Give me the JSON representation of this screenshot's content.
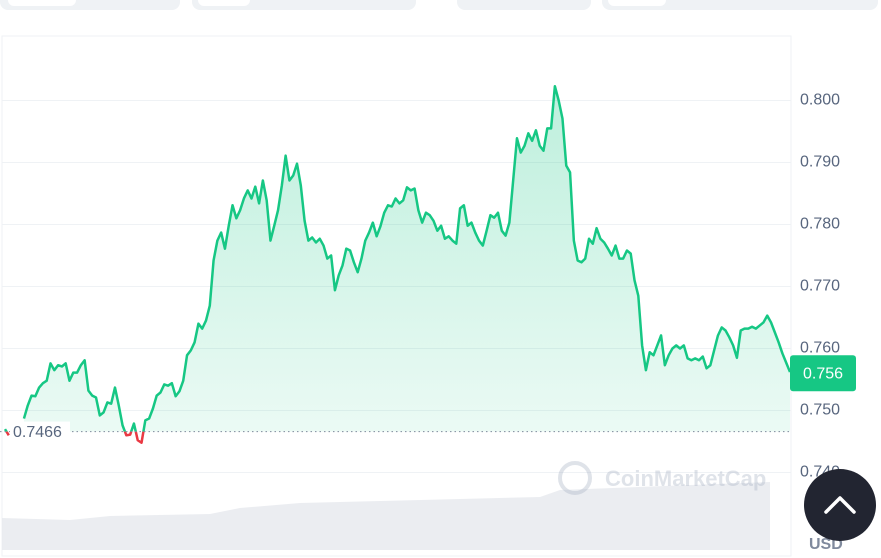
{
  "chart_data": {
    "type": "line",
    "color": "#16c784",
    "down_color": "#ea3943",
    "values": [
      0.747,
      0.746,
      null,
      null,
      null,
      0.7487,
      0.7508,
      0.7524,
      0.7523,
      0.7537,
      0.7544,
      0.7548,
      0.7576,
      0.7565,
      0.7573,
      0.7571,
      0.7576,
      0.7548,
      0.7561,
      0.7561,
      0.7573,
      0.7581,
      0.7532,
      0.7524,
      0.7521,
      0.7492,
      0.7497,
      0.7513,
      0.7511,
      0.7537,
      0.7508,
      0.7476,
      0.746,
      0.7461,
      0.7479,
      0.7452,
      0.7448,
      0.7484,
      0.7487,
      0.7503,
      0.7524,
      0.7529,
      0.7542,
      0.754,
      0.7544,
      0.7523,
      0.7531,
      0.7548,
      0.7589,
      0.7597,
      0.761,
      0.764,
      0.7632,
      0.7645,
      0.7669,
      0.7742,
      0.7774,
      0.7787,
      0.7761,
      0.7798,
      0.7831,
      0.781,
      0.7823,
      0.7842,
      0.7855,
      0.7842,
      0.7861,
      0.7834,
      0.7871,
      0.7839,
      0.7774,
      0.7798,
      0.7823,
      0.7863,
      0.7911,
      0.7871,
      0.7879,
      0.7898,
      0.7863,
      0.7806,
      0.7774,
      0.7779,
      0.7771,
      0.7777,
      0.7766,
      0.7745,
      0.775,
      0.7694,
      0.7718,
      0.7734,
      0.7761,
      0.7758,
      0.7739,
      0.7723,
      0.7745,
      0.7774,
      0.7787,
      0.7803,
      0.7781,
      0.7797,
      0.7819,
      0.7831,
      0.7829,
      0.7842,
      0.7834,
      0.7839,
      0.786,
      0.7855,
      0.7858,
      0.7823,
      0.7803,
      0.7819,
      0.7815,
      0.7806,
      0.779,
      0.7798,
      0.7777,
      0.7781,
      0.7774,
      0.7769,
      0.7826,
      0.7831,
      0.7798,
      0.7803,
      0.7787,
      0.7774,
      0.7766,
      0.779,
      0.7815,
      0.7811,
      0.7819,
      0.779,
      0.7782,
      0.7803,
      0.7871,
      0.7939,
      0.7916,
      0.7927,
      0.7947,
      0.7935,
      0.7952,
      0.7927,
      0.7919,
      0.7955,
      0.7955,
      0.8023,
      0.8,
      0.7971,
      0.7895,
      0.7884,
      0.7774,
      0.7742,
      0.7739,
      0.7745,
      0.7777,
      0.7769,
      0.7794,
      0.7777,
      0.7771,
      0.7761,
      0.775,
      0.7766,
      0.7745,
      0.7745,
      0.7758,
      0.7753,
      0.771,
      0.7685,
      0.7605,
      0.7565,
      0.7594,
      0.7589,
      0.7605,
      0.7621,
      0.7573,
      0.7589,
      0.76,
      0.7605,
      0.76,
      0.7605,
      0.7584,
      0.7581,
      0.7584,
      0.7581,
      0.7587,
      0.7568,
      0.7573,
      0.7597,
      0.7621,
      0.7634,
      0.7629,
      0.7618,
      0.7605,
      0.7585,
      0.7629,
      0.7632,
      0.7632,
      0.7635,
      0.7632,
      0.7637,
      0.7642,
      0.7653,
      0.7642,
      0.7626,
      0.761,
      0.7592,
      0.7577,
      0.7562
    ],
    "ylim": [
      0.7275,
      0.8104
    ],
    "yticks": [
      {
        "value": 0.74,
        "label": "0.740"
      },
      {
        "value": 0.75,
        "label": "0.750"
      },
      {
        "value": 0.76,
        "label": "0.760"
      },
      {
        "value": 0.77,
        "label": "0.770"
      },
      {
        "value": 0.78,
        "label": "0.780"
      },
      {
        "value": 0.79,
        "label": "0.790"
      },
      {
        "value": 0.8,
        "label": "0.800"
      }
    ],
    "grid": true,
    "reference_price": 0.7466,
    "current_price": 0.756,
    "watermark": "CoinMarketCap",
    "currency": "USD"
  }
}
